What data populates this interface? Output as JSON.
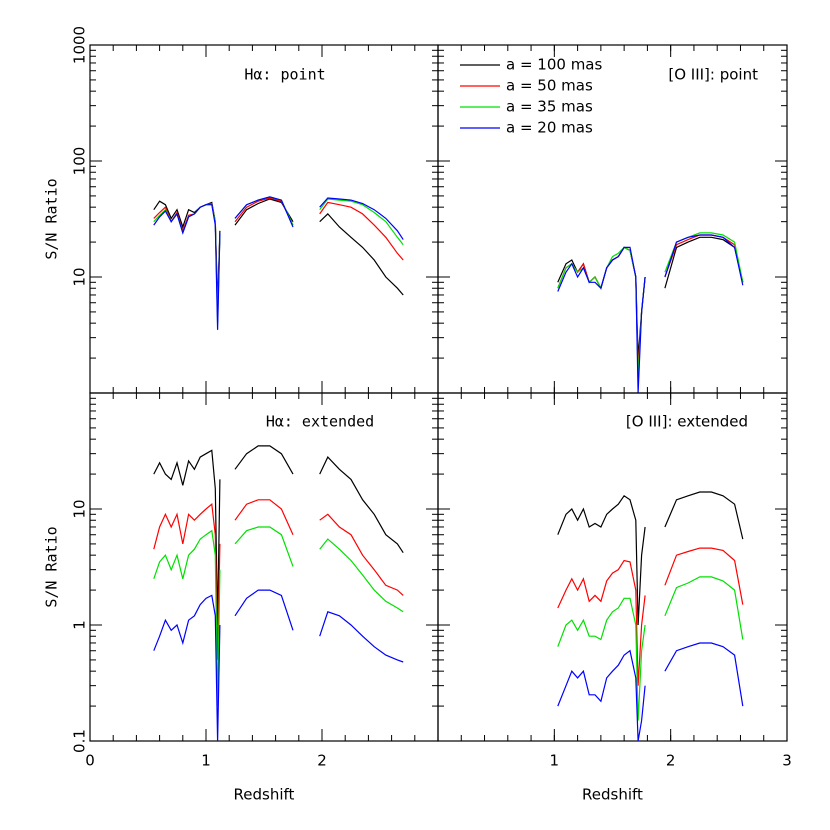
{
  "chart_data": [
    {
      "type": "line",
      "title": "Hα: point",
      "ylabel": "S/N Ratio",
      "log": true,
      "xlim": [
        0,
        3
      ],
      "xticks": [
        0,
        1,
        2,
        3
      ],
      "xtick_labels": false,
      "ylim": [
        1,
        1000
      ],
      "yticks": [
        10,
        100,
        1000
      ],
      "ytick_labels": true,
      "x": [
        0.55,
        0.6,
        0.65,
        0.7,
        0.75,
        0.8,
        0.85,
        0.9,
        0.95,
        1.0,
        1.05,
        1.08,
        1.1,
        1.12,
        1.18,
        1.25,
        1.35,
        1.45,
        1.55,
        1.65,
        1.75,
        1.85,
        1.98,
        2.05,
        2.15,
        2.25,
        2.35,
        2.45,
        2.55,
        2.65,
        2.7
      ],
      "series": [
        {
          "color": "#000000",
          "values": [
            38,
            45,
            42,
            32,
            38,
            27,
            38,
            36,
            40,
            42,
            44,
            30,
            6,
            25,
            null,
            28,
            38,
            43,
            47,
            44,
            30,
            null,
            30,
            35,
            27,
            22,
            18,
            14,
            10,
            8,
            7
          ]
        },
        {
          "color": "#ff0000",
          "values": [
            32,
            36,
            40,
            30,
            36,
            25,
            34,
            35,
            40,
            42,
            43,
            30,
            5,
            24,
            null,
            30,
            40,
            45,
            48,
            45,
            28,
            null,
            35,
            44,
            42,
            40,
            35,
            28,
            22,
            16,
            14
          ]
        },
        {
          "color": "#00e000",
          "values": [
            30,
            34,
            38,
            30,
            35,
            24,
            33,
            35,
            40,
            42,
            42,
            30,
            4,
            24,
            null,
            32,
            42,
            46,
            49,
            46,
            28,
            null,
            38,
            47,
            46,
            45,
            42,
            36,
            30,
            22,
            19
          ]
        },
        {
          "color": "#0000ff",
          "values": [
            28,
            33,
            37,
            30,
            35,
            24,
            33,
            35,
            40,
            42,
            42,
            28,
            3.5,
            24,
            null,
            32,
            42,
            46,
            49,
            46,
            27,
            null,
            40,
            48,
            47,
            46,
            43,
            38,
            32,
            25,
            21
          ]
        }
      ]
    },
    {
      "type": "line",
      "title": "[O III]: point",
      "log": true,
      "legend": "upper left",
      "xlim": [
        0,
        3
      ],
      "xticks": [
        1,
        2,
        3
      ],
      "xtick_labels": false,
      "ylim": [
        1,
        1000
      ],
      "yticks": [
        10,
        100
      ],
      "ytick_labels": false,
      "x": [
        1.03,
        1.1,
        1.15,
        1.2,
        1.25,
        1.3,
        1.35,
        1.4,
        1.45,
        1.5,
        1.55,
        1.6,
        1.65,
        1.7,
        1.72,
        1.75,
        1.78,
        1.86,
        1.95,
        2.05,
        2.15,
        2.25,
        2.35,
        2.45,
        2.55,
        2.62
      ],
      "series": [
        {
          "name": "a = 100 mas",
          "color": "#000000",
          "values": [
            9,
            13,
            14,
            11,
            13,
            9,
            10,
            8,
            12,
            14,
            15,
            18,
            17,
            10,
            2,
            5,
            10,
            null,
            8,
            18,
            20,
            22,
            22,
            21,
            18,
            9
          ]
        },
        {
          "name": "a = 50 mas",
          "color": "#ff0000",
          "values": [
            8,
            12,
            13,
            11,
            13,
            9,
            10,
            8,
            12,
            14,
            15,
            18,
            17,
            10,
            1.5,
            5,
            10,
            null,
            10,
            19,
            21,
            23,
            23,
            22,
            19,
            9
          ]
        },
        {
          "name": "a = 35 mas",
          "color": "#00e000",
          "values": [
            8,
            12,
            13,
            11,
            12,
            9,
            10,
            8,
            12,
            15,
            16,
            18,
            17,
            10,
            1.3,
            5,
            10,
            null,
            11,
            20,
            22,
            24,
            24,
            23,
            20,
            9
          ]
        },
        {
          "name": "a = 20 mas",
          "color": "#0000ff",
          "values": [
            7.5,
            11,
            13,
            10,
            12,
            9,
            9,
            8,
            12,
            14,
            15,
            18,
            18,
            10,
            1,
            5,
            10,
            null,
            10,
            20,
            22,
            23,
            23,
            22,
            18,
            8.5
          ]
        }
      ]
    },
    {
      "type": "line",
      "title": "Hα: extended",
      "ylabel": "S/N Ratio",
      "xlabel": "Redshift",
      "log": true,
      "xlim": [
        0,
        3
      ],
      "xticks": [
        0,
        1,
        2
      ],
      "xtick_labels": true,
      "ylim": [
        0.1,
        100
      ],
      "yticks": [
        0.1,
        1,
        10
      ],
      "ytick_labels": true,
      "x": [
        0.55,
        0.6,
        0.65,
        0.7,
        0.75,
        0.8,
        0.85,
        0.9,
        0.95,
        1.0,
        1.05,
        1.08,
        1.1,
        1.12,
        1.18,
        1.25,
        1.35,
        1.45,
        1.55,
        1.65,
        1.75,
        1.85,
        1.98,
        2.05,
        2.15,
        2.25,
        2.35,
        2.45,
        2.55,
        2.65,
        2.7
      ],
      "series": [
        {
          "color": "#000000",
          "values": [
            20,
            25,
            20,
            18,
            25,
            16,
            26,
            22,
            28,
            30,
            32,
            15,
            1,
            18,
            null,
            22,
            30,
            35,
            35,
            30,
            20,
            null,
            20,
            28,
            22,
            18,
            12,
            9,
            6,
            5,
            4.2
          ]
        },
        {
          "color": "#ff0000",
          "values": [
            4.5,
            7,
            9,
            7,
            9,
            5,
            9,
            8,
            9,
            10,
            11,
            6,
            0.5,
            5,
            null,
            8,
            11,
            12,
            12,
            10,
            6,
            null,
            8,
            9,
            7,
            6,
            4,
            3,
            2.2,
            2,
            1.8
          ]
        },
        {
          "color": "#00e000",
          "values": [
            2.5,
            3.5,
            4,
            3,
            4,
            2.5,
            4,
            4.5,
            5.5,
            6,
            6.5,
            4,
            0.2,
            3,
            null,
            5,
            6.5,
            7,
            7,
            6,
            3.2,
            null,
            4.5,
            5.5,
            4.5,
            3.6,
            2.7,
            2,
            1.6,
            1.4,
            1.3
          ]
        },
        {
          "color": "#0000ff",
          "values": [
            0.6,
            0.8,
            1.1,
            0.9,
            1.0,
            0.7,
            1.1,
            1.2,
            1.5,
            1.7,
            1.8,
            1.2,
            0.1,
            1.0,
            null,
            1.2,
            1.7,
            2,
            2,
            1.8,
            0.9,
            null,
            0.8,
            1.3,
            1.2,
            1.0,
            0.8,
            0.65,
            0.55,
            0.5,
            0.48
          ]
        }
      ]
    },
    {
      "type": "line",
      "title": "[O III]: extended",
      "xlabel": "Redshift",
      "log": true,
      "xlim": [
        0,
        3
      ],
      "xticks": [
        1,
        2,
        3
      ],
      "xtick_labels": true,
      "ylim": [
        0.1,
        100
      ],
      "yticks": [
        1,
        10
      ],
      "ytick_labels": false,
      "x": [
        1.03,
        1.1,
        1.15,
        1.2,
        1.25,
        1.3,
        1.35,
        1.4,
        1.45,
        1.5,
        1.55,
        1.6,
        1.65,
        1.7,
        1.72,
        1.75,
        1.78,
        1.86,
        1.95,
        2.05,
        2.15,
        2.25,
        2.35,
        2.45,
        2.55,
        2.62
      ],
      "series": [
        {
          "color": "#000000",
          "values": [
            6,
            9,
            10,
            8,
            10,
            7,
            7.5,
            7,
            9,
            10,
            11,
            13,
            12,
            8,
            1,
            4,
            7,
            null,
            7,
            12,
            13,
            14,
            14,
            13,
            11,
            5.5
          ]
        },
        {
          "color": "#ff0000",
          "values": [
            1.4,
            2,
            2.5,
            2,
            2.5,
            1.6,
            1.8,
            1.6,
            2.4,
            2.8,
            3,
            3.6,
            3.5,
            2,
            0.3,
            1,
            1.8,
            null,
            2.2,
            4,
            4.3,
            4.6,
            4.6,
            4.4,
            3.6,
            1.5
          ]
        },
        {
          "color": "#00e000",
          "values": [
            0.65,
            1,
            1.1,
            0.9,
            1.1,
            0.8,
            0.8,
            0.75,
            1.1,
            1.3,
            1.4,
            1.7,
            1.7,
            1,
            0.15,
            0.6,
            1,
            null,
            1.2,
            2.1,
            2.3,
            2.6,
            2.6,
            2.4,
            2,
            0.75
          ]
        },
        {
          "color": "#0000ff",
          "values": [
            0.2,
            0.3,
            0.4,
            0.35,
            0.4,
            0.25,
            0.25,
            0.22,
            0.35,
            0.4,
            0.45,
            0.55,
            0.6,
            0.35,
            0.1,
            0.15,
            0.3,
            null,
            0.4,
            0.6,
            0.65,
            0.7,
            0.7,
            0.65,
            0.55,
            0.2
          ]
        }
      ]
    }
  ]
}
